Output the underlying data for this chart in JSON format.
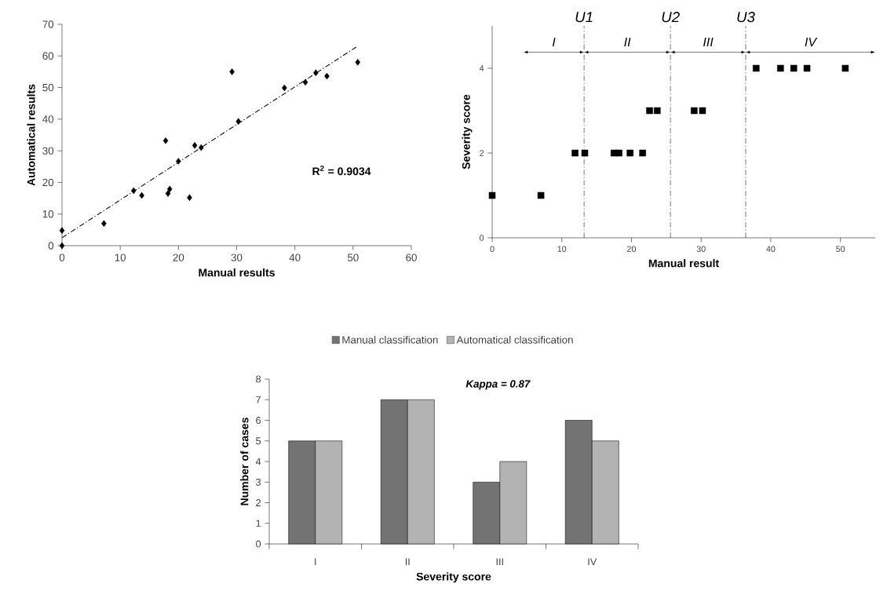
{
  "chart_data": [
    {
      "type": "scatter",
      "xlabel": "Manual results",
      "ylabel": "Automatical results",
      "xlim": [
        0,
        60
      ],
      "ylim": [
        0,
        70
      ],
      "xticks": [
        0,
        10,
        20,
        30,
        40,
        50,
        60
      ],
      "yticks": [
        0,
        10,
        20,
        30,
        40,
        50,
        60,
        70
      ],
      "annotations": [
        "R$^{2}$ = 0.9034"
      ],
      "series": [
        {
          "color": "#000000",
          "marker": "diamond",
          "x": [
            0,
            0,
            7.2,
            12.3,
            13.7,
            17.8,
            18.2,
            18.5,
            20.0,
            21.9,
            22.8,
            23.9,
            29.2,
            30.3,
            38.2,
            41.8,
            43.6,
            45.5,
            50.8
          ],
          "values": [
            0,
            4.8,
            7.0,
            17.4,
            15.9,
            33.2,
            16.5,
            17.9,
            26.7,
            15.2,
            31.7,
            31.0,
            55.0,
            39.3,
            49.9,
            51.7,
            54.7,
            53.6,
            58.0
          ]
        },
        {
          "type": "line",
          "color": "#000000",
          "line_style": "dashed",
          "x": [
            0,
            50.7
          ],
          "values": [
            2.5,
            63.0
          ]
        }
      ]
    },
    {
      "type": "scatter",
      "xlabel": "Manual result",
      "ylabel": "Severity score",
      "xlim": [
        0,
        55
      ],
      "ylim": [
        0,
        5
      ],
      "xticks": [
        0,
        10,
        20,
        30,
        40,
        50
      ],
      "yticks": [
        0,
        2,
        4
      ],
      "marker": "square",
      "series": [
        {
          "color": "#000000",
          "x": [
            0,
            7.0,
            11.9,
            13.3,
            17.5,
            18.2,
            19.8,
            21.6,
            22.6,
            23.7,
            29.0,
            30.2,
            37.9,
            41.4,
            43.3,
            45.2,
            50.7
          ],
          "values": [
            1,
            1,
            2,
            2,
            2,
            2,
            2,
            2,
            3,
            3,
            3,
            3,
            4,
            4,
            4,
            4,
            4
          ]
        }
      ],
      "ref_lines": [
        {
          "axis": "x",
          "value": 13.2,
          "label": "U1",
          "color": "#000000",
          "line_style": "dashed"
        },
        {
          "axis": "x",
          "value": 25.6,
          "label": "U2",
          "color": "#000000",
          "line_style": "dashed"
        },
        {
          "axis": "x",
          "value": 36.4,
          "label": "U3",
          "color": "#000000",
          "line_style": "dashed"
        }
      ],
      "annotations": [
        "I",
        "II",
        "III",
        "IV"
      ]
    },
    {
      "type": "bar",
      "xlabel": "Severity score",
      "ylabel": "Number of cases",
      "categories": [
        "I",
        "II",
        "III",
        "IV"
      ],
      "ylim": [
        0,
        8
      ],
      "yticks": [
        0,
        1,
        2,
        3,
        4,
        5,
        6,
        7,
        8
      ],
      "legend": "top",
      "annotations": [
        "Kappa = 0.87"
      ],
      "series": [
        {
          "name": "Manual classification",
          "color": "#737373",
          "values": [
            5,
            7,
            3,
            6
          ]
        },
        {
          "name": "Automatical classification",
          "color": "#b3b3b3",
          "values": [
            5,
            7,
            4,
            5
          ]
        }
      ]
    }
  ]
}
